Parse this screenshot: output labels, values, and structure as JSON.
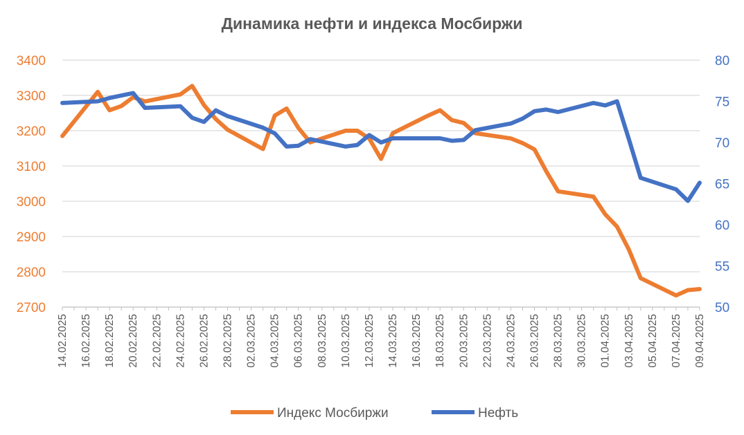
{
  "chart_data": {
    "type": "line",
    "title": "Динамика нефти и индекса Мосбиржи",
    "colors": {
      "index": "#ED7D31",
      "oil": "#4472C4",
      "grid": "#D9D9D9",
      "text": "#595959"
    },
    "y_left": {
      "ylim": [
        2700,
        3400
      ],
      "ticks": [
        "3400",
        "3300",
        "3200",
        "3100",
        "3000",
        "2900",
        "2800",
        "2700"
      ]
    },
    "y_right": {
      "ylim": [
        50,
        80
      ],
      "ticks": [
        "80",
        "75",
        "70",
        "65",
        "60",
        "55",
        "50"
      ]
    },
    "x_tick_labels": [
      "14.02.2025",
      "16.02.2025",
      "18.02.2025",
      "20.02.2025",
      "22.02.2025",
      "24.02.2025",
      "26.02.2025",
      "28.02.2025",
      "02.03.2025",
      "04.03.2025",
      "06.03.2025",
      "08.03.2025",
      "10.03.2025",
      "12.03.2025",
      "14.03.2025",
      "16.03.2025",
      "18.03.2025",
      "20.03.2025",
      "22.03.2025",
      "24.03.2025",
      "26.03.2025",
      "28.03.2025",
      "30.03.2025",
      "01.04.2025",
      "03.04.2025",
      "05.04.2025",
      "07.04.2025",
      "09.04.2025"
    ],
    "x_range": [
      "14.02.2025",
      "09.04.2025"
    ],
    "legend_position": "bottom",
    "series": [
      {
        "name": "Индекс Мосбиржи",
        "axis": "left",
        "points": [
          [
            "14.02.2025",
            3185
          ],
          [
            "17.02.2025",
            3310
          ],
          [
            "18.02.2025",
            3258
          ],
          [
            "19.02.2025",
            3270
          ],
          [
            "20.02.2025",
            3295
          ],
          [
            "21.02.2025",
            3283
          ],
          [
            "24.02.2025",
            3303
          ],
          [
            "25.02.2025",
            3327
          ],
          [
            "26.02.2025",
            3273
          ],
          [
            "27.02.2025",
            3233
          ],
          [
            "28.02.2025",
            3203
          ],
          [
            "03.03.2025",
            3148
          ],
          [
            "04.03.2025",
            3243
          ],
          [
            "05.03.2025",
            3263
          ],
          [
            "06.03.2025",
            3208
          ],
          [
            "07.03.2025",
            3167
          ],
          [
            "10.03.2025",
            3200
          ],
          [
            "11.03.2025",
            3200
          ],
          [
            "12.03.2025",
            3178
          ],
          [
            "13.03.2025",
            3120
          ],
          [
            "14.03.2025",
            3193
          ],
          [
            "17.03.2025",
            3243
          ],
          [
            "18.03.2025",
            3258
          ],
          [
            "19.03.2025",
            3230
          ],
          [
            "20.03.2025",
            3222
          ],
          [
            "21.03.2025",
            3193
          ],
          [
            "24.03.2025",
            3178
          ],
          [
            "25.03.2025",
            3165
          ],
          [
            "26.03.2025",
            3147
          ],
          [
            "27.03.2025",
            3085
          ],
          [
            "28.03.2025",
            3028
          ],
          [
            "31.03.2025",
            3013
          ],
          [
            "01.04.2025",
            2963
          ],
          [
            "02.04.2025",
            2928
          ],
          [
            "03.04.2025",
            2863
          ],
          [
            "04.04.2025",
            2782
          ],
          [
            "07.04.2025",
            2733
          ],
          [
            "08.04.2025",
            2748
          ],
          [
            "09.04.2025",
            2751
          ]
        ]
      },
      {
        "name": "Нефть",
        "axis": "right",
        "points": [
          [
            "14.02.2025",
            74.8
          ],
          [
            "17.02.2025",
            75.0
          ],
          [
            "18.02.2025",
            75.4
          ],
          [
            "20.02.2025",
            76.0
          ],
          [
            "21.02.2025",
            74.2
          ],
          [
            "24.02.2025",
            74.4
          ],
          [
            "25.02.2025",
            73.0
          ],
          [
            "26.02.2025",
            72.5
          ],
          [
            "27.02.2025",
            73.9
          ],
          [
            "28.02.2025",
            73.2
          ],
          [
            "03.03.2025",
            71.8
          ],
          [
            "04.03.2025",
            71.1
          ],
          [
            "05.03.2025",
            69.5
          ],
          [
            "06.03.2025",
            69.6
          ],
          [
            "07.03.2025",
            70.4
          ],
          [
            "10.03.2025",
            69.5
          ],
          [
            "11.03.2025",
            69.7
          ],
          [
            "12.03.2025",
            70.9
          ],
          [
            "13.03.2025",
            70.0
          ],
          [
            "14.03.2025",
            70.5
          ],
          [
            "18.03.2025",
            70.5
          ],
          [
            "19.03.2025",
            70.2
          ],
          [
            "20.03.2025",
            70.3
          ],
          [
            "21.03.2025",
            71.5
          ],
          [
            "24.03.2025",
            72.3
          ],
          [
            "25.03.2025",
            72.9
          ],
          [
            "26.03.2025",
            73.8
          ],
          [
            "27.03.2025",
            74.0
          ],
          [
            "28.03.2025",
            73.7
          ],
          [
            "31.03.2025",
            74.8
          ],
          [
            "01.04.2025",
            74.5
          ],
          [
            "02.04.2025",
            75.0
          ],
          [
            "03.04.2025",
            70.4
          ],
          [
            "04.04.2025",
            65.7
          ],
          [
            "07.04.2025",
            64.3
          ],
          [
            "08.04.2025",
            62.9
          ],
          [
            "09.04.2025",
            65.1
          ]
        ]
      }
    ]
  }
}
